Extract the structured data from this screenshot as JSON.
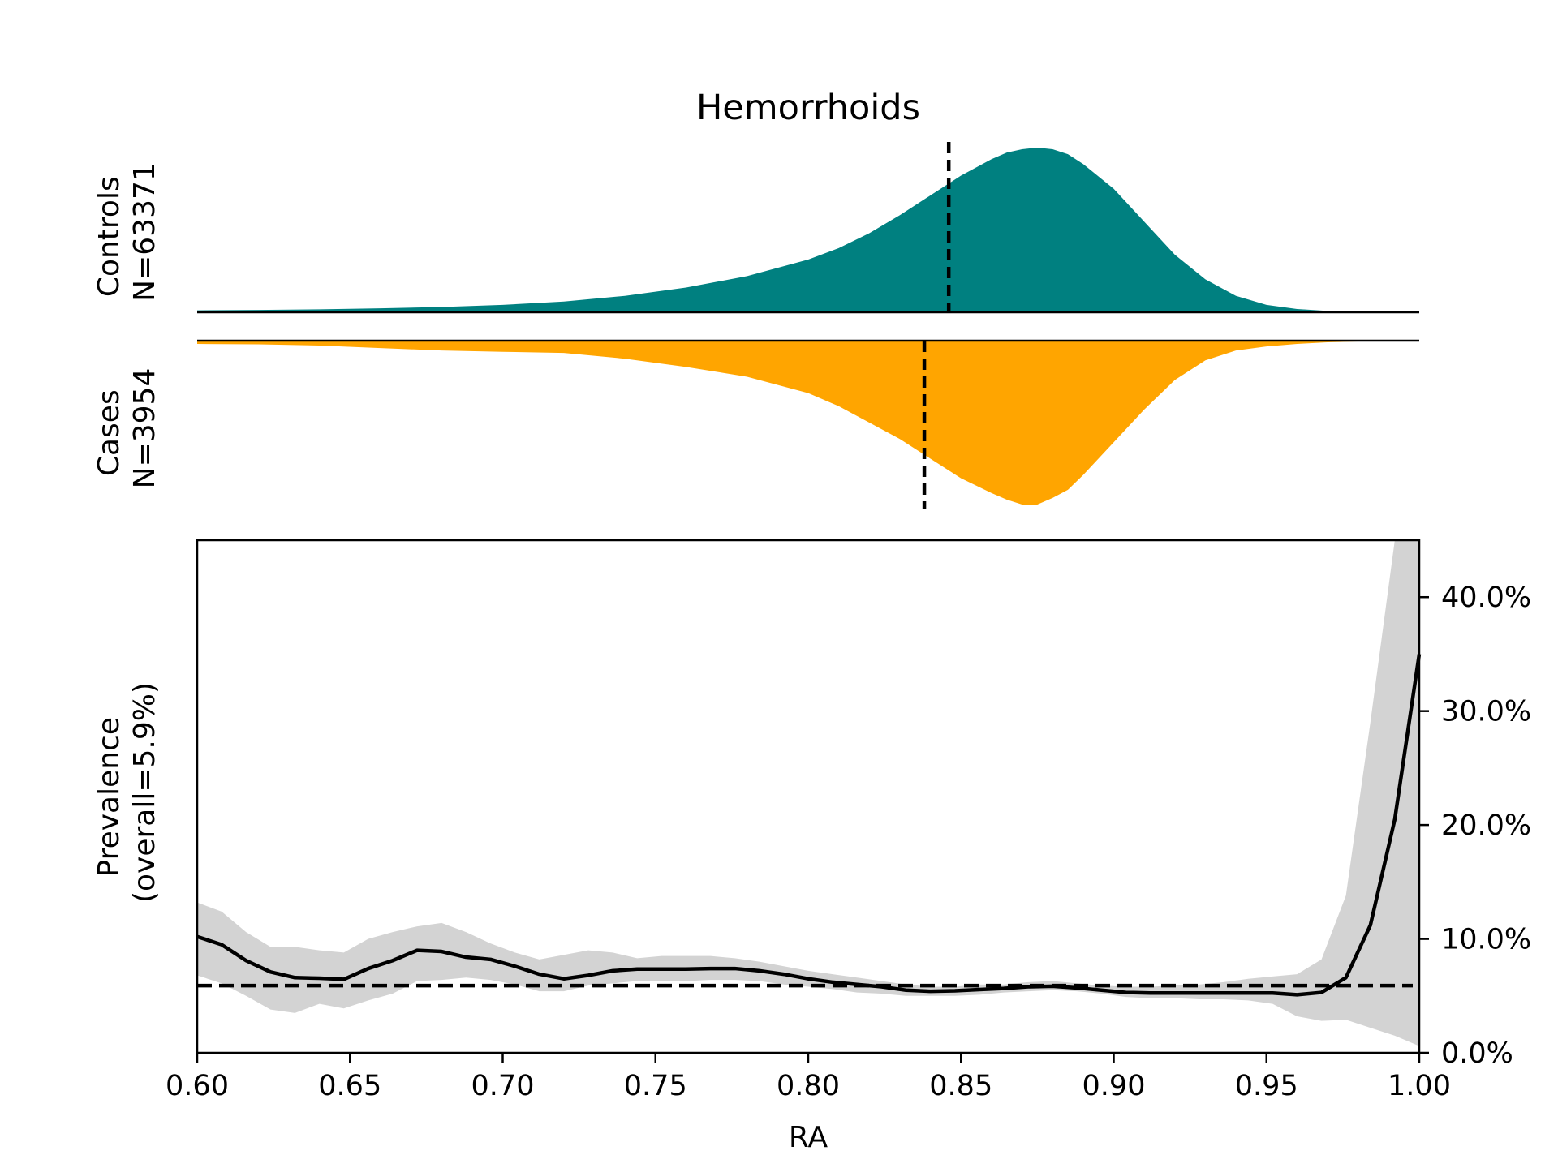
{
  "chart_data": {
    "title": "Hemorrhoids",
    "xlabel": "RA",
    "xlim": [
      0.6,
      1.0
    ],
    "xticks": [
      "0.60",
      "0.65",
      "0.70",
      "0.75",
      "0.80",
      "0.85",
      "0.90",
      "0.95",
      "1.00"
    ],
    "colors": {
      "controls": "#008080",
      "cases": "#FFA500",
      "band": "#D3D3D3",
      "line": "#000000"
    },
    "controls": {
      "label_line1": "Controls",
      "label_line2": "N=63371",
      "mean": 0.846,
      "type": "area",
      "x": [
        0.6,
        0.62,
        0.64,
        0.66,
        0.68,
        0.7,
        0.72,
        0.74,
        0.76,
        0.78,
        0.8,
        0.81,
        0.82,
        0.83,
        0.84,
        0.85,
        0.86,
        0.865,
        0.87,
        0.875,
        0.88,
        0.885,
        0.89,
        0.9,
        0.91,
        0.92,
        0.93,
        0.94,
        0.95,
        0.96,
        0.97,
        0.98,
        1.0
      ],
      "density": [
        0.012,
        0.014,
        0.018,
        0.024,
        0.032,
        0.045,
        0.065,
        0.1,
        0.15,
        0.22,
        0.32,
        0.39,
        0.48,
        0.59,
        0.71,
        0.83,
        0.93,
        0.97,
        0.99,
        1.0,
        0.99,
        0.96,
        0.9,
        0.75,
        0.55,
        0.35,
        0.2,
        0.1,
        0.045,
        0.02,
        0.008,
        0.003,
        0.001
      ]
    },
    "cases": {
      "label_line1": "Cases",
      "label_line2": "N=3954",
      "mean": 0.838,
      "type": "area",
      "x": [
        0.6,
        0.62,
        0.64,
        0.66,
        0.68,
        0.7,
        0.72,
        0.74,
        0.76,
        0.78,
        0.8,
        0.81,
        0.82,
        0.83,
        0.84,
        0.85,
        0.86,
        0.865,
        0.87,
        0.875,
        0.88,
        0.885,
        0.89,
        0.9,
        0.91,
        0.92,
        0.93,
        0.94,
        0.95,
        0.96,
        0.97,
        0.98,
        1.0
      ],
      "density": [
        0.02,
        0.022,
        0.03,
        0.045,
        0.06,
        0.068,
        0.075,
        0.11,
        0.16,
        0.22,
        0.32,
        0.4,
        0.5,
        0.6,
        0.72,
        0.84,
        0.93,
        0.97,
        1.0,
        1.0,
        0.96,
        0.91,
        0.82,
        0.62,
        0.42,
        0.24,
        0.12,
        0.06,
        0.035,
        0.02,
        0.01,
        0.005,
        0.002
      ]
    },
    "prevalence": {
      "type": "line",
      "ylabel_line1": "Prevalence",
      "ylabel_line2": "(overall=5.9%)",
      "ylim": [
        0,
        45
      ],
      "yticks": [
        0,
        10,
        20,
        30,
        40
      ],
      "ytick_labels": [
        "0.0%",
        "10.0%",
        "20.0%",
        "30.0%",
        "40.0%"
      ],
      "overall": 5.9,
      "x": [
        0.6,
        0.608,
        0.616,
        0.624,
        0.632,
        0.64,
        0.648,
        0.656,
        0.664,
        0.672,
        0.68,
        0.688,
        0.696,
        0.704,
        0.712,
        0.72,
        0.728,
        0.736,
        0.744,
        0.752,
        0.76,
        0.768,
        0.776,
        0.784,
        0.792,
        0.8,
        0.808,
        0.816,
        0.824,
        0.832,
        0.84,
        0.848,
        0.856,
        0.864,
        0.872,
        0.88,
        0.888,
        0.896,
        0.904,
        0.912,
        0.92,
        0.928,
        0.936,
        0.944,
        0.952,
        0.96,
        0.968,
        0.976,
        0.984,
        0.992,
        1.0
      ],
      "y": [
        10.2,
        9.5,
        8.1,
        7.1,
        6.6,
        6.55,
        6.45,
        7.4,
        8.1,
        9.0,
        8.9,
        8.4,
        8.2,
        7.6,
        6.9,
        6.5,
        6.8,
        7.2,
        7.35,
        7.35,
        7.35,
        7.4,
        7.4,
        7.2,
        6.9,
        6.5,
        6.2,
        6.0,
        5.8,
        5.5,
        5.4,
        5.45,
        5.55,
        5.65,
        5.8,
        5.85,
        5.7,
        5.5,
        5.3,
        5.25,
        5.25,
        5.25,
        5.25,
        5.25,
        5.25,
        5.1,
        5.3,
        6.6,
        11.2,
        20.5,
        35.0
      ],
      "ci_low": [
        6.8,
        6.1,
        5.0,
        3.8,
        3.5,
        4.3,
        3.9,
        4.6,
        5.2,
        6.3,
        6.4,
        6.6,
        6.4,
        6.0,
        5.4,
        5.4,
        5.9,
        6.1,
        6.3,
        6.3,
        6.3,
        6.4,
        6.4,
        6.3,
        6.0,
        5.8,
        5.6,
        5.3,
        5.2,
        5.0,
        5.0,
        5.0,
        5.1,
        5.3,
        5.4,
        5.5,
        5.4,
        5.2,
        4.9,
        4.8,
        4.8,
        4.7,
        4.7,
        4.6,
        4.3,
        3.2,
        2.8,
        2.9,
        2.2,
        1.5,
        0.6
      ],
      "ci_high": [
        13.2,
        12.4,
        10.6,
        9.3,
        9.3,
        9.0,
        8.8,
        10.0,
        10.6,
        11.1,
        11.4,
        10.6,
        9.6,
        8.8,
        8.2,
        8.6,
        9.0,
        8.8,
        8.3,
        8.5,
        8.5,
        8.5,
        8.3,
        8.0,
        7.6,
        7.2,
        6.9,
        6.6,
        6.3,
        6.0,
        5.8,
        5.8,
        6.0,
        6.0,
        6.2,
        6.3,
        6.1,
        5.9,
        5.8,
        5.8,
        5.9,
        6.0,
        6.2,
        6.5,
        6.7,
        6.9,
        8.2,
        13.8,
        29.0,
        48.0,
        48.0
      ]
    }
  }
}
